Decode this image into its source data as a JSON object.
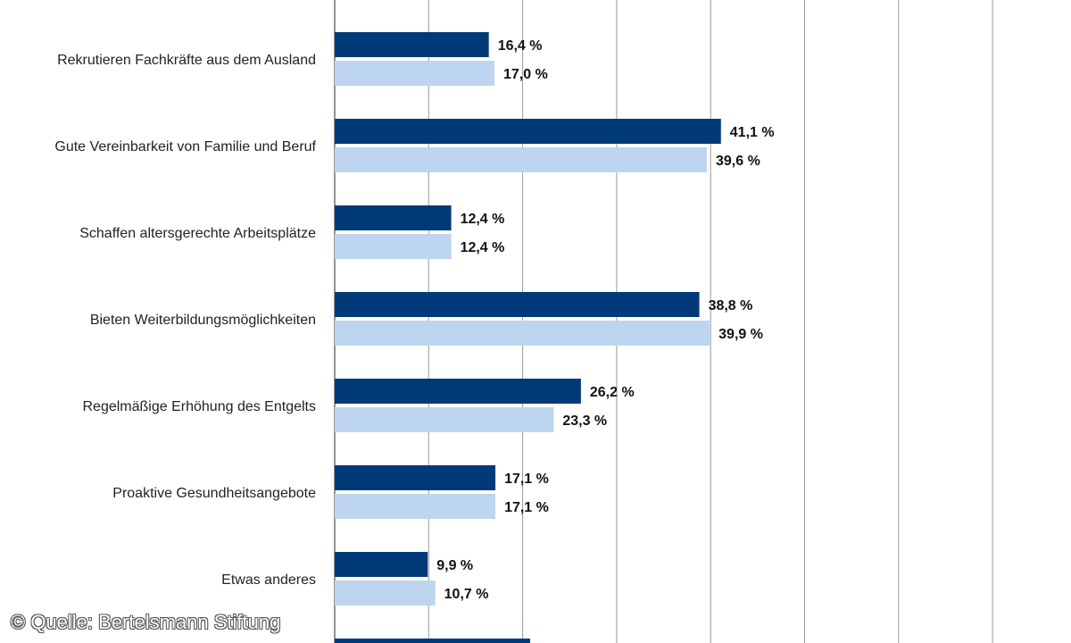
{
  "chart_data": {
    "type": "bar",
    "orientation": "horizontal",
    "categories": [
      "Rekrutieren Fachkräfte aus dem Ausland",
      "Gute Vereinbarkeit von Familie und Beruf",
      "Schaffen altersgerechte Arbeitsplätze",
      "Bieten Weiterbildungsmöglichkeiten",
      "Regelmäßige Erhöhung des Entgelts",
      "Proaktive Gesundheitsangebote",
      "Etwas anderes"
    ],
    "series": [
      {
        "color": "#003a78",
        "values": [
          16.4,
          41.1,
          12.4,
          38.8,
          26.2,
          17.1,
          9.9
        ],
        "labels": [
          "16,4 %",
          "41,1 %",
          "12,4 %",
          "38,8 %",
          "26,2 %",
          "17,1 %",
          "9,9 %"
        ]
      },
      {
        "color": "#bdd5ef",
        "values": [
          17.0,
          39.6,
          12.4,
          39.9,
          23.3,
          17.1,
          10.7
        ],
        "labels": [
          "17,0 %",
          "39,6 %",
          "12,4 %",
          "39,9 %",
          "23,3 %",
          "17,1 %",
          "10,7 %"
        ]
      }
    ],
    "xlim": [
      0,
      80
    ],
    "grid": true,
    "partial_bar_value": 20.8
  },
  "source": "© Quelle: Bertelsmann Stiftung",
  "colors": {
    "gridline": "#999999",
    "axis": "#666666"
  }
}
